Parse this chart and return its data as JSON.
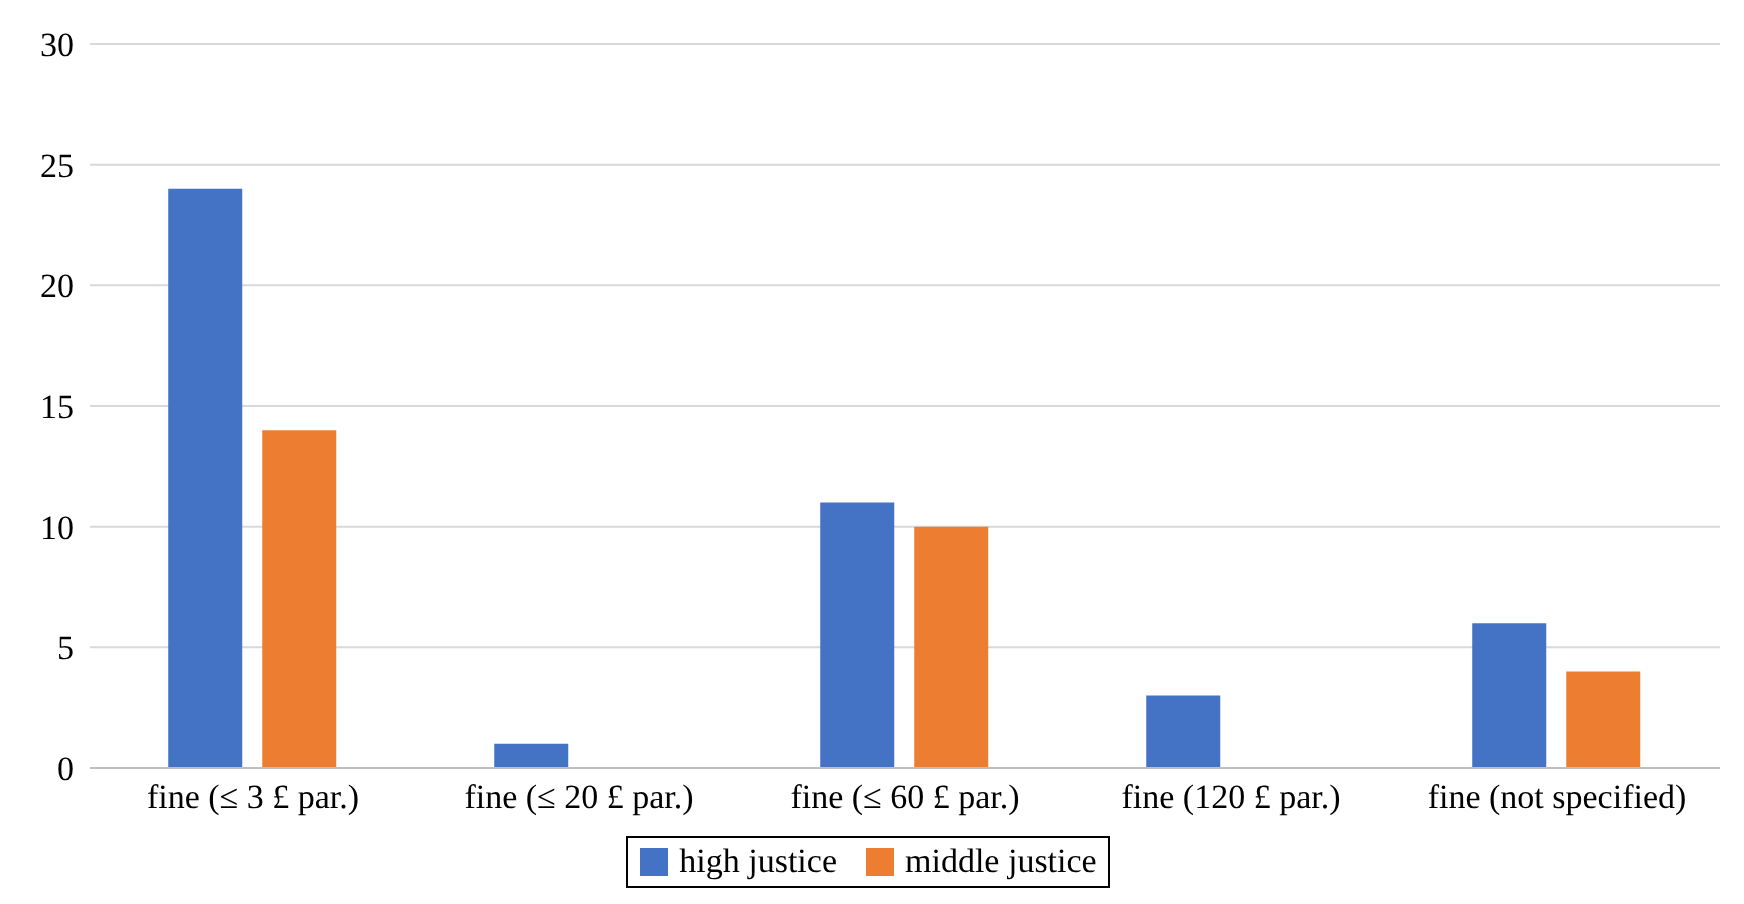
{
  "chart_data": {
    "type": "bar",
    "categories": [
      "fine (≤ 3 £ par.)",
      "fine (≤ 20 £ par.)",
      "fine (≤ 60 £ par.)",
      "fine (120 £ par.)",
      "fine (not specified)"
    ],
    "series": [
      {
        "name": "high justice",
        "color": "#4472c4",
        "values": [
          24,
          1,
          11,
          3,
          6
        ]
      },
      {
        "name": "middle justice",
        "color": "#ed7d31",
        "values": [
          14,
          0,
          10,
          0,
          4
        ]
      }
    ],
    "ylim": [
      0,
      30
    ],
    "yticks": [
      0,
      5,
      10,
      15,
      20,
      25,
      30
    ],
    "grid": "y",
    "legend": "bottom"
  }
}
